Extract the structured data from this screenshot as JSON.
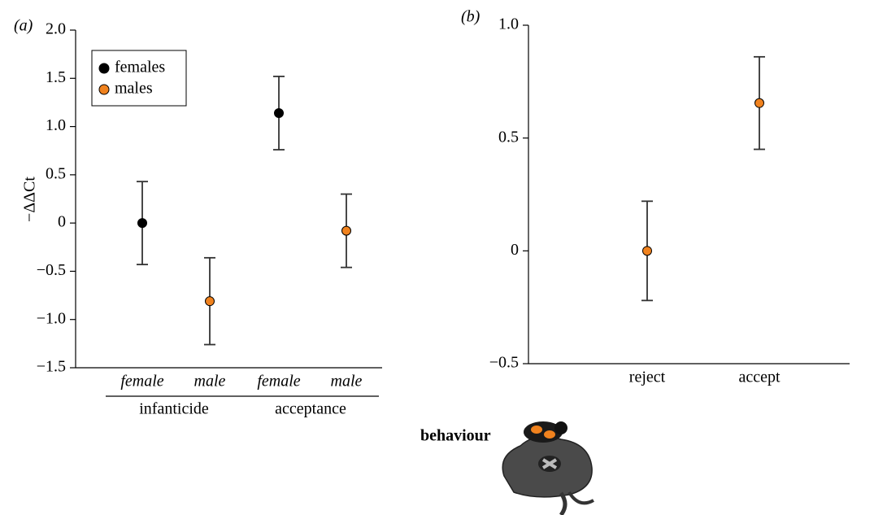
{
  "chart_data": [
    {
      "type": "errorbar",
      "title": "(a)",
      "y_label": "−ΔΔCt",
      "categories": [
        "female",
        "male",
        "female",
        "male"
      ],
      "groups": [
        "infanticide",
        "acceptance"
      ],
      "series": [
        {
          "name": "females",
          "color": "#000000",
          "values": [
            0,
            null,
            1.14,
            null
          ],
          "errors": [
            0.43,
            null,
            0.38,
            null
          ]
        },
        {
          "name": "males",
          "color": "#f0821e",
          "values": [
            null,
            -0.81,
            null,
            -0.08
          ],
          "errors": [
            null,
            0.45,
            null,
            0.38
          ]
        }
      ],
      "ylim": [
        -1.5,
        2.0
      ],
      "yticks": [
        {
          "value": -1.5,
          "label": "−1.5"
        },
        {
          "value": -1.0,
          "label": "−1.0"
        },
        {
          "value": -0.5,
          "label": "−0.5"
        },
        0,
        0.5,
        {
          "value": 1.0,
          "label": "1.0"
        },
        {
          "value": 1.5,
          "label": "1.5"
        },
        {
          "value": 2.0,
          "label": "2.0"
        }
      ],
      "legend": "top-left"
    },
    {
      "type": "errorbar",
      "title": "(b)",
      "x_label": "behaviour",
      "categories": [
        "reject",
        "accept"
      ],
      "series": [
        {
          "color": "#f0821e",
          "values": [
            0,
            0.655
          ],
          "errors": [
            0.22,
            0.205
          ]
        }
      ],
      "ylim": [
        -0.5,
        1.0
      ],
      "yticks": [
        {
          "value": -0.5,
          "label": "−0.5"
        },
        0,
        0.5,
        {
          "value": 1.0,
          "label": "1.0"
        }
      ]
    }
  ]
}
